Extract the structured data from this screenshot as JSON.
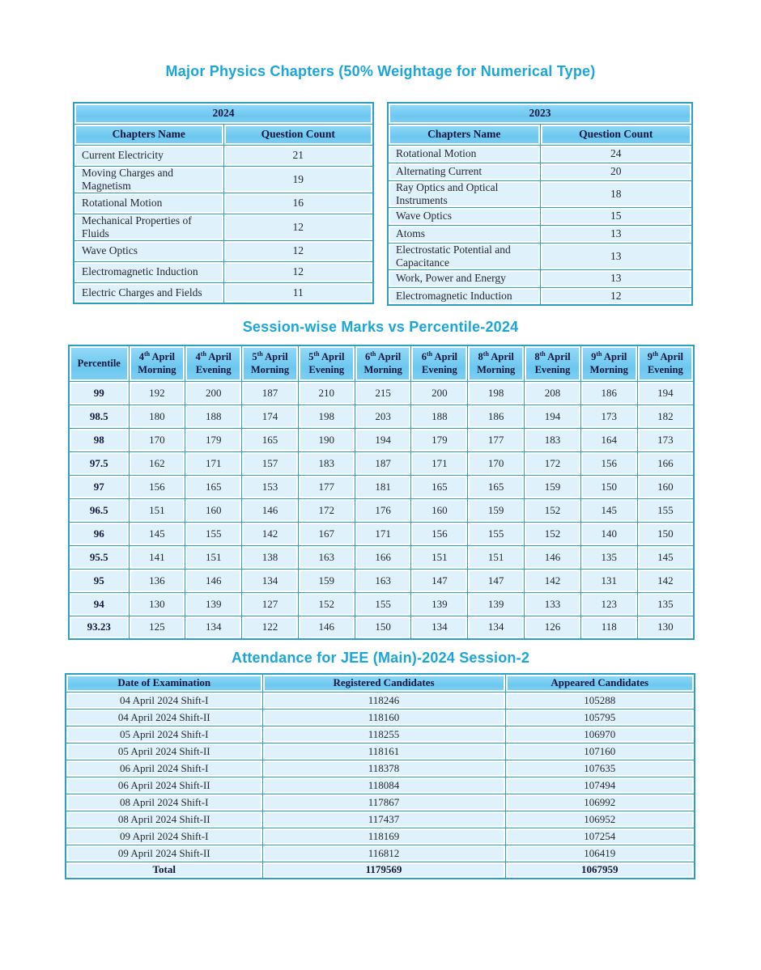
{
  "theme": {
    "accent_color": "#1ba6d8",
    "table_header_bg": "#7ccdf1",
    "table_row_bg": "#dff2fb",
    "table_border_color": "#2aa0c2"
  },
  "section1": {
    "title": "Major Physics Chapters (50% Weightage for Numerical Type)",
    "tables": [
      {
        "year": "2024",
        "columns": [
          "Chapters Name",
          "Question Count"
        ],
        "rows": [
          [
            "Current Electricity",
            "21"
          ],
          [
            "Moving Charges and Magnetism",
            "19"
          ],
          [
            "Rotational Motion",
            "16"
          ],
          [
            "Mechanical Properties of Fluids",
            "12"
          ],
          [
            "Wave Optics",
            "12"
          ],
          [
            "Electromagnetic Induction",
            "12"
          ],
          [
            "Electric Charges and Fields",
            "11"
          ]
        ]
      },
      {
        "year": "2023",
        "columns": [
          "Chapters Name",
          "Question Count"
        ],
        "rows": [
          [
            "Rotational Motion",
            "24"
          ],
          [
            "Alternating Current",
            "20"
          ],
          [
            "Ray Optics and Optical Instruments",
            "18"
          ],
          [
            "Wave Optics",
            "15"
          ],
          [
            "Atoms",
            "13"
          ],
          [
            "Electrostatic Potential and Capacitance",
            "13"
          ],
          [
            "Work, Power and Energy",
            "13"
          ],
          [
            "Electromagnetic Induction",
            "12"
          ]
        ]
      }
    ]
  },
  "section2": {
    "title": "Session-wise Marks vs Percentile-2024",
    "header_first": "Percentile",
    "columns": [
      {
        "day": "4",
        "suffix": "th",
        "rest": " April",
        "line2": "Morning"
      },
      {
        "day": "4",
        "suffix": "th",
        "rest": " April",
        "line2": "Evening"
      },
      {
        "day": "5",
        "suffix": "th",
        "rest": " April",
        "line2": "Morning"
      },
      {
        "day": "5",
        "suffix": "th",
        "rest": " April",
        "line2": "Evening"
      },
      {
        "day": "6",
        "suffix": "th",
        "rest": " April",
        "line2": "Morning"
      },
      {
        "day": "6",
        "suffix": "th",
        "rest": " April",
        "line2": "Evening"
      },
      {
        "day": "8",
        "suffix": "th",
        "rest": " April",
        "line2": "Morning"
      },
      {
        "day": "8",
        "suffix": "th",
        "rest": " April",
        "line2": "Evening"
      },
      {
        "day": "9",
        "suffix": "th",
        "rest": " April",
        "line2": "Morning"
      },
      {
        "day": "9",
        "suffix": "th",
        "rest": " April",
        "line2": "Evening"
      }
    ],
    "rows": [
      {
        "percentile": "99",
        "marks": [
          192,
          200,
          187,
          210,
          215,
          200,
          198,
          208,
          186,
          194
        ]
      },
      {
        "percentile": "98.5",
        "marks": [
          180,
          188,
          174,
          198,
          203,
          188,
          186,
          194,
          173,
          182
        ]
      },
      {
        "percentile": "98",
        "marks": [
          170,
          179,
          165,
          190,
          194,
          179,
          177,
          183,
          164,
          173
        ]
      },
      {
        "percentile": "97.5",
        "marks": [
          162,
          171,
          157,
          183,
          187,
          171,
          170,
          172,
          156,
          166
        ]
      },
      {
        "percentile": "97",
        "marks": [
          156,
          165,
          153,
          177,
          181,
          165,
          165,
          159,
          150,
          160
        ]
      },
      {
        "percentile": "96.5",
        "marks": [
          151,
          160,
          146,
          172,
          176,
          160,
          159,
          152,
          145,
          155
        ]
      },
      {
        "percentile": "96",
        "marks": [
          145,
          155,
          142,
          167,
          171,
          156,
          155,
          152,
          140,
          150
        ]
      },
      {
        "percentile": "95.5",
        "marks": [
          141,
          151,
          138,
          163,
          166,
          151,
          151,
          146,
          135,
          145
        ]
      },
      {
        "percentile": "95",
        "marks": [
          136,
          146,
          134,
          159,
          163,
          147,
          147,
          142,
          131,
          142
        ]
      },
      {
        "percentile": "94",
        "marks": [
          130,
          139,
          127,
          152,
          155,
          139,
          139,
          133,
          123,
          135
        ]
      },
      {
        "percentile": "93.23",
        "marks": [
          125,
          134,
          122,
          146,
          150,
          134,
          134,
          126,
          118,
          130
        ]
      }
    ]
  },
  "section3": {
    "title": "Attendance for JEE (Main)-2024 Session-2",
    "columns": [
      "Date of Examination",
      "Registered Candidates",
      "Appeared Candidates"
    ],
    "rows": [
      [
        "04 April 2024 Shift-I",
        "118246",
        "105288"
      ],
      [
        "04 April 2024 Shift-II",
        "118160",
        "105795"
      ],
      [
        "05 April 2024 Shift-I",
        "118255",
        "106970"
      ],
      [
        "05 April 2024 Shift-II",
        "118161",
        "107160"
      ],
      [
        "06 April 2024 Shift-I",
        "118378",
        "107635"
      ],
      [
        "06 April 2024 Shift-II",
        "118084",
        "107494"
      ],
      [
        "08 April 2024 Shift-I",
        "117867",
        "106992"
      ],
      [
        "08 April 2024 Shift-II",
        "117437",
        "106952"
      ],
      [
        "09 April 2024 Shift-I",
        "118169",
        "107254"
      ],
      [
        "09 April 2024 Shift-II",
        "116812",
        "106419"
      ]
    ],
    "total": [
      "Total",
      "1179569",
      "1067959"
    ]
  }
}
